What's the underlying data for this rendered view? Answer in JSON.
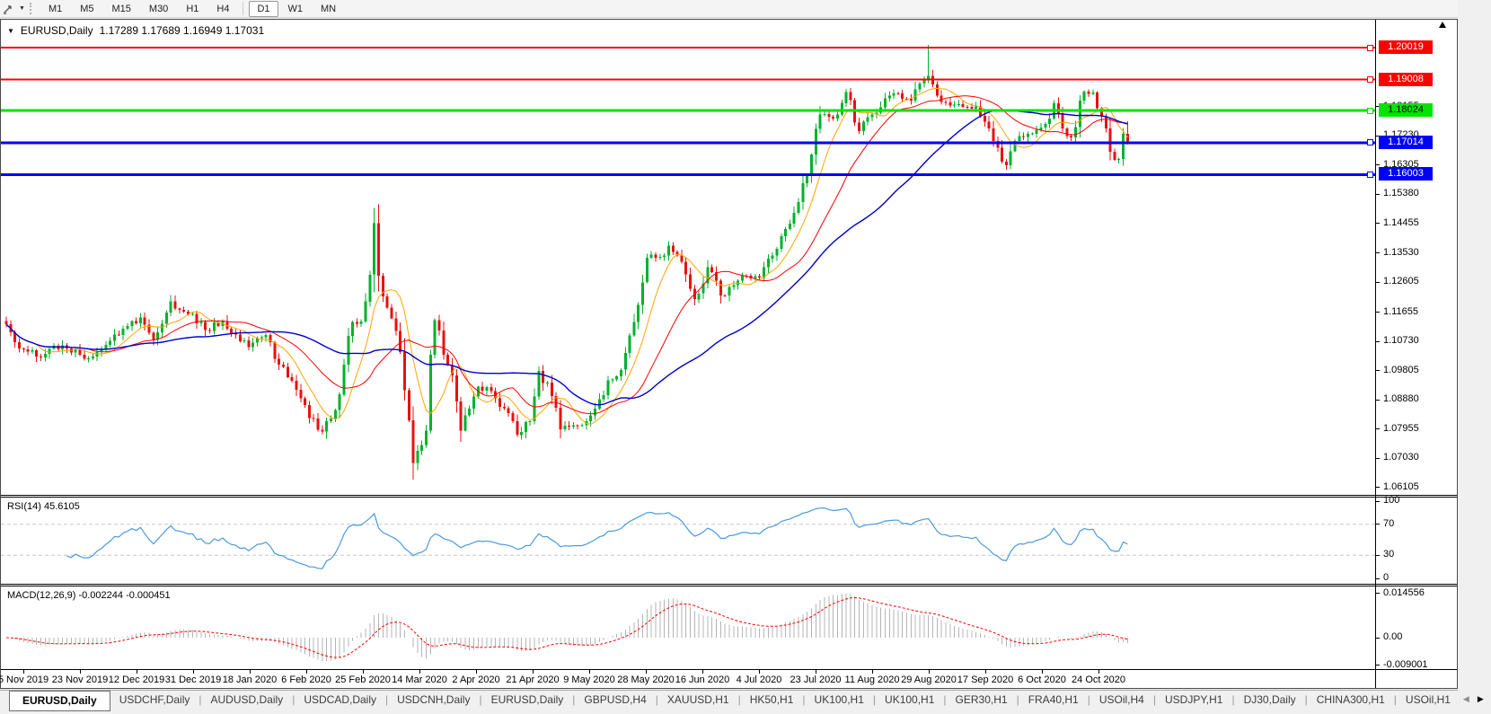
{
  "toolbar": {
    "tool_icon": "crosshair-cursor-icon",
    "dropdown_caret": "▼",
    "timeframes": [
      {
        "label": "M1",
        "active": false
      },
      {
        "label": "M5",
        "active": false
      },
      {
        "label": "M15",
        "active": false
      },
      {
        "label": "M30",
        "active": false
      },
      {
        "label": "H1",
        "active": false
      },
      {
        "label": "H4",
        "active": false
      },
      {
        "label": "D1",
        "active": true
      },
      {
        "label": "W1",
        "active": false
      },
      {
        "label": "MN",
        "active": false
      }
    ]
  },
  "chart": {
    "collapse_icon": "▼",
    "title_symbol": "EURUSD,Daily",
    "title_ohlc": "1.17289 1.17689 1.16949 1.17031",
    "hlines": [
      {
        "price": 1.20019,
        "label": "1.20019",
        "color": "#ff0000",
        "text_color": "#ffffff",
        "thickness": 2
      },
      {
        "price": 1.19008,
        "label": "1.19008",
        "color": "#ff0000",
        "text_color": "#ffffff",
        "thickness": 2
      },
      {
        "price": 1.18024,
        "label": "1.18024",
        "color": "#00e400",
        "text_color": "#000000",
        "thickness": 3
      },
      {
        "price": 1.17014,
        "label": "1.17014",
        "color": "#0000ff",
        "text_color": "#ffffff",
        "thickness": 3
      },
      {
        "price": 1.16003,
        "label": "1.16003",
        "color": "#0000ff",
        "text_color": "#ffffff",
        "thickness": 3
      }
    ],
    "price_axis_ticks": [
      "1.18155",
      "1.17230",
      "1.16305",
      "1.15380",
      "1.14455",
      "1.13530",
      "1.12605",
      "1.11655",
      "1.10730",
      "1.09805",
      "1.08880",
      "1.07955",
      "1.07030",
      "1.06105"
    ],
    "colors": {
      "candle_up": "#00b22d",
      "candle_down": "#e81010",
      "ma_fast": "#ffa500",
      "ma_mid": "#ff0000",
      "ma_slow": "#0000cd",
      "rsi_line": "#4a9ade",
      "rsi_levels": "#c8c8c8",
      "macd_histogram": "#b4b4b4",
      "macd_signal": "#ff0000"
    }
  },
  "rsi_panel": {
    "label": "RSI(14) 45.6105",
    "axis_labels": [
      "100",
      "70",
      "30",
      "0"
    ],
    "axis_values": [
      100,
      70,
      30,
      0
    ],
    "upper_level": 70,
    "lower_level": 30
  },
  "macd_panel": {
    "label": "MACD(12,26,9) -0.002244 -0.000451",
    "axis_labels": [
      "0.014556",
      "0.00",
      "-0.009001"
    ],
    "axis_values": [
      0.014556,
      0.0,
      -0.009001
    ]
  },
  "date_axis": {
    "labels": [
      "5 Nov 2019",
      "23 Nov 2019",
      "12 Dec 2019",
      "31 Dec 2019",
      "18 Jan 2020",
      "6 Feb 2020",
      "25 Feb 2020",
      "14 Mar 2020",
      "2 Apr 2020",
      "21 Apr 2020",
      "9 May 2020",
      "28 May 2020",
      "16 Jun 2020",
      "4 Jul 2020",
      "23 Jul 2020",
      "11 Aug 2020",
      "29 Aug 2020",
      "17 Sep 2020",
      "6 Oct 2020",
      "24 Oct 2020"
    ]
  },
  "tabs": {
    "items": [
      "EURUSD,Daily",
      "USDCHF,Daily",
      "AUDUSD,Daily",
      "USDCAD,Daily",
      "USDCNH,Daily",
      "EURUSD,Daily",
      "GBPUSD,H4",
      "XAUUSD,H1",
      "HK50,H1",
      "UK100,H1",
      "UK100,H1",
      "GER30,H1",
      "FRA40,H1",
      "USOil,H4",
      "USDJPY,H1",
      "DJ30,Daily",
      "CHINA300,H1",
      "USOil,H1"
    ],
    "active_index": 0,
    "scroll_left_icon": "◀",
    "scroll_right_icon": "▶"
  },
  "chart_data": {
    "type": "candlestick",
    "symbol": "EURUSD",
    "timeframe": "Daily",
    "last_ohlc": {
      "open": 1.17289,
      "high": 1.17689,
      "low": 1.16949,
      "close": 1.17031
    },
    "ylim": [
      1.059,
      1.2088
    ],
    "x_first_label": "5 Nov 2019",
    "x_last_label": "24 Oct 2020",
    "num_candles": 260,
    "horizontal_levels": [
      1.20019,
      1.19008,
      1.18024,
      1.17014,
      1.16003
    ],
    "close_anchors": [
      [
        0,
        1.1127
      ],
      [
        3,
        1.105
      ],
      [
        8,
        1.1022
      ],
      [
        13,
        1.106
      ],
      [
        18,
        1.1018
      ],
      [
        23,
        1.1062
      ],
      [
        28,
        1.1122
      ],
      [
        31,
        1.1148
      ],
      [
        34,
        1.1078
      ],
      [
        38,
        1.1199
      ],
      [
        40,
        1.1172
      ],
      [
        43,
        1.116
      ],
      [
        46,
        1.1109
      ],
      [
        50,
        1.1136
      ],
      [
        53,
        1.1094
      ],
      [
        56,
        1.1055
      ],
      [
        60,
        1.1093
      ],
      [
        63,
        1.1
      ],
      [
        66,
        1.0948
      ],
      [
        70,
        1.083
      ],
      [
        73,
        1.0788
      ],
      [
        76,
        1.0856
      ],
      [
        78,
        1.1
      ],
      [
        80,
        1.1134
      ],
      [
        82,
        1.1136
      ],
      [
        84,
        1.1284
      ],
      [
        85,
        1.1446
      ],
      [
        86,
        1.1281
      ],
      [
        88,
        1.118
      ],
      [
        90,
        1.1106
      ],
      [
        92,
        1.0918
      ],
      [
        94,
        1.0688
      ],
      [
        95,
        1.0727
      ],
      [
        97,
        1.079
      ],
      [
        98,
        1.103
      ],
      [
        99,
        1.114
      ],
      [
        101,
        1.1031
      ],
      [
        103,
        1.0965
      ],
      [
        105,
        1.0791
      ],
      [
        107,
        1.086
      ],
      [
        109,
        1.093
      ],
      [
        112,
        1.0915
      ],
      [
        115,
        1.0862
      ],
      [
        118,
        1.0777
      ],
      [
        121,
        1.082
      ],
      [
        123,
        1.098
      ],
      [
        126,
        1.09
      ],
      [
        128,
        1.0795
      ],
      [
        131,
        1.0807
      ],
      [
        134,
        1.082
      ],
      [
        137,
        1.089
      ],
      [
        139,
        1.095
      ],
      [
        142,
        1.0983
      ],
      [
        145,
        1.1134
      ],
      [
        148,
        1.1337
      ],
      [
        151,
        1.134
      ],
      [
        153,
        1.1375
      ],
      [
        156,
        1.1324
      ],
      [
        159,
        1.1206
      ],
      [
        162,
        1.1308
      ],
      [
        165,
        1.1218
      ],
      [
        168,
        1.1251
      ],
      [
        171,
        1.128
      ],
      [
        174,
        1.1274
      ],
      [
        177,
        1.1344
      ],
      [
        180,
        1.1428
      ],
      [
        183,
        1.1513
      ],
      [
        185,
        1.1596
      ],
      [
        188,
        1.1791
      ],
      [
        191,
        1.1778
      ],
      [
        194,
        1.1862
      ],
      [
        197,
        1.1738
      ],
      [
        200,
        1.179
      ],
      [
        203,
        1.1842
      ],
      [
        206,
        1.1857
      ],
      [
        209,
        1.1834
      ],
      [
        212,
        1.1903
      ],
      [
        213,
        1.1913
      ],
      [
        215,
        1.185
      ],
      [
        218,
        1.1818
      ],
      [
        221,
        1.1815
      ],
      [
        224,
        1.1816
      ],
      [
        226,
        1.1767
      ],
      [
        228,
        1.1707
      ],
      [
        231,
        1.163
      ],
      [
        234,
        1.1722
      ],
      [
        237,
        1.173
      ],
      [
        240,
        1.176
      ],
      [
        242,
        1.1826
      ],
      [
        244,
        1.1746
      ],
      [
        246,
        1.1718
      ],
      [
        249,
        1.1863
      ],
      [
        251,
        1.186
      ],
      [
        252,
        1.181
      ],
      [
        254,
        1.1746
      ],
      [
        255,
        1.1672
      ],
      [
        256,
        1.1647
      ],
      [
        257,
        1.165
      ],
      [
        258,
        1.1729
      ],
      [
        259,
        1.17031
      ]
    ],
    "wick_overrides": [
      [
        85,
        "h",
        1.1495
      ],
      [
        94,
        "l",
        1.0636
      ],
      [
        213,
        "h",
        1.2011
      ],
      [
        259,
        "h",
        1.17689
      ],
      [
        259,
        "l",
        1.16949
      ]
    ],
    "moving_averages": [
      {
        "period": 8,
        "color": "#ffa500",
        "width": 1
      },
      {
        "period": 20,
        "color": "#ff0000",
        "width": 1
      },
      {
        "period": 45,
        "color": "#0000cd",
        "width": 1.4
      }
    ],
    "rsi": {
      "period": 14,
      "current": 45.6105
    },
    "macd": {
      "fast": 12,
      "slow": 26,
      "signal": 9,
      "current_macd": -0.002244,
      "current_signal": -0.000451
    }
  }
}
